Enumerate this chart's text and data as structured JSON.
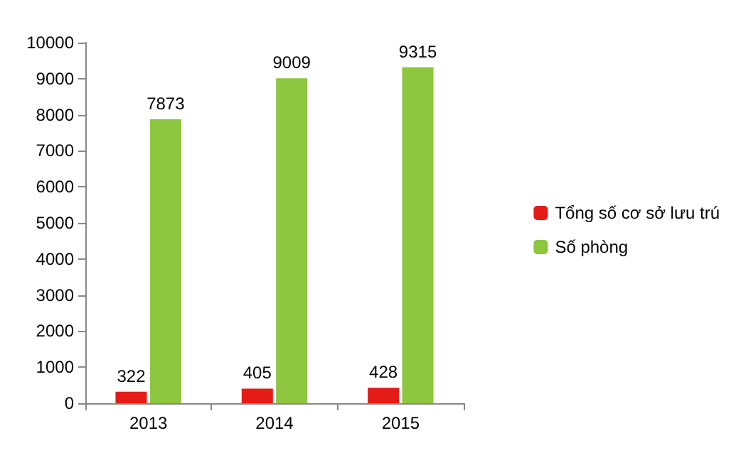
{
  "chart_data": {
    "type": "bar",
    "categories": [
      "2013",
      "2014",
      "2015"
    ],
    "series": [
      {
        "name": "Tổng số cơ sở lưu trú",
        "color": "#e41b17",
        "values": [
          322,
          405,
          428
        ]
      },
      {
        "name": "Số phòng",
        "color": "#8dc63f",
        "values": [
          7873,
          9009,
          9315
        ]
      }
    ],
    "ylim": [
      0,
      10000
    ],
    "yticks": [
      0,
      1000,
      2000,
      3000,
      4000,
      5000,
      6000,
      7000,
      8000,
      9000,
      10000
    ],
    "data_labels": true,
    "legend": "right",
    "grid": false
  }
}
